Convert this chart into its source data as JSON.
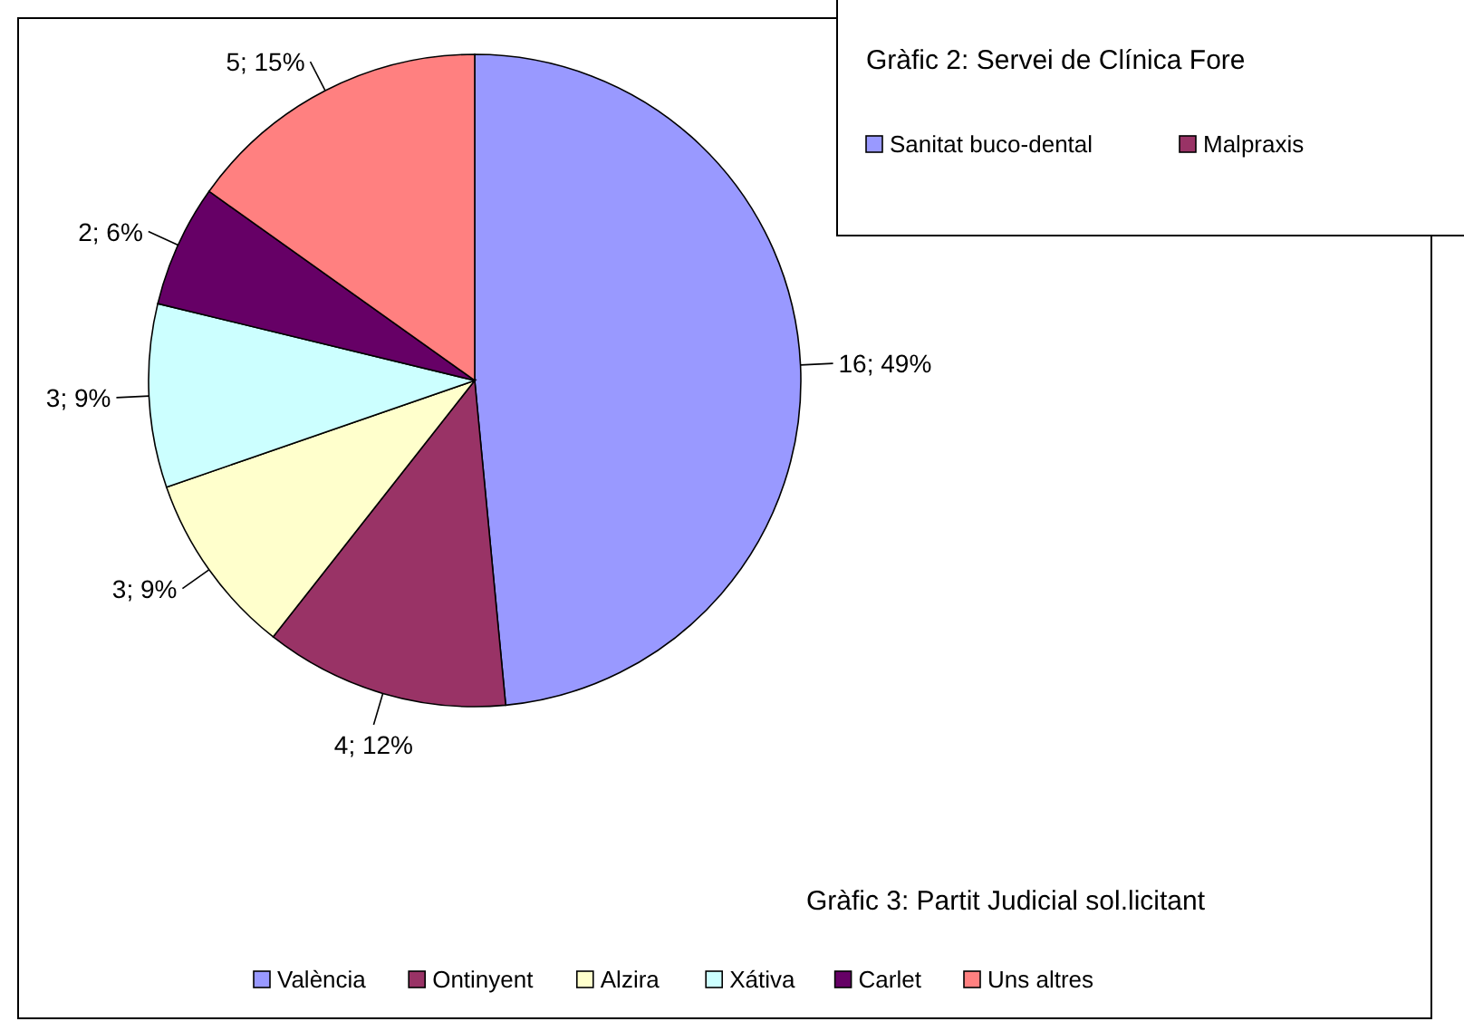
{
  "chart_data": [
    {
      "type": "pie",
      "title": "Gràfic 3: Partit Judicial sol.licitant",
      "categories": [
        "València",
        "Ontinyent",
        "Alzira",
        "Xátiva",
        "Carlet",
        "Uns altres"
      ],
      "values": [
        16,
        4,
        3,
        3,
        2,
        5
      ],
      "colors": [
        "#9999ff",
        "#993366",
        "#ffffcc",
        "#ccffff",
        "#660066",
        "#ff8080"
      ],
      "value_labels": [
        "16; 49%",
        "4; 12%",
        "3; 9%",
        "3; 9%",
        "2; 6%",
        "5; 15%"
      ],
      "legend": "bottom"
    },
    {
      "type": "other",
      "title": "Gràfic 2: Servei de Clínica Fore",
      "annotations": [
        "Sanitat buco-dental",
        "Malpraxis"
      ],
      "colors": [
        "#9999ff",
        "#993366"
      ]
    }
  ]
}
